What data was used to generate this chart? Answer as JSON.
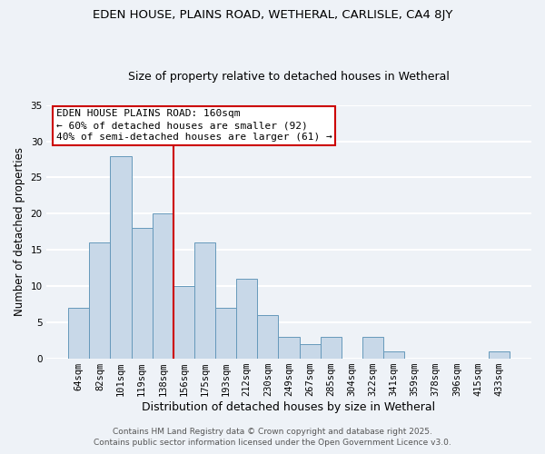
{
  "title1": "EDEN HOUSE, PLAINS ROAD, WETHERAL, CARLISLE, CA4 8JY",
  "title2": "Size of property relative to detached houses in Wetheral",
  "xlabel": "Distribution of detached houses by size in Wetheral",
  "ylabel": "Number of detached properties",
  "categories": [
    "64sqm",
    "82sqm",
    "101sqm",
    "119sqm",
    "138sqm",
    "156sqm",
    "175sqm",
    "193sqm",
    "212sqm",
    "230sqm",
    "249sqm",
    "267sqm",
    "285sqm",
    "304sqm",
    "322sqm",
    "341sqm",
    "359sqm",
    "378sqm",
    "396sqm",
    "415sqm",
    "433sqm"
  ],
  "values": [
    7,
    16,
    28,
    18,
    20,
    10,
    16,
    7,
    11,
    6,
    3,
    2,
    3,
    0,
    3,
    1,
    0,
    0,
    0,
    0,
    1
  ],
  "bar_color": "#c8d8e8",
  "bar_edge_color": "#6699bb",
  "reference_line_index": 5,
  "reference_line_color": "#cc0000",
  "annotation_box_edge_color": "#cc0000",
  "annotation_text_line1": "EDEN HOUSE PLAINS ROAD: 160sqm",
  "annotation_text_line2": "← 60% of detached houses are smaller (92)",
  "annotation_text_line3": "40% of semi-detached houses are larger (61) →",
  "ylim": [
    0,
    35
  ],
  "yticks": [
    0,
    5,
    10,
    15,
    20,
    25,
    30,
    35
  ],
  "footer1": "Contains HM Land Registry data © Crown copyright and database right 2025.",
  "footer2": "Contains public sector information licensed under the Open Government Licence v3.0.",
  "background_color": "#eef2f7",
  "grid_color": "#ffffff",
  "title1_fontsize": 9.5,
  "title2_fontsize": 9,
  "xlabel_fontsize": 9,
  "ylabel_fontsize": 8.5,
  "tick_fontsize": 7.5,
  "footer_fontsize": 6.5,
  "annotation_fontsize": 8
}
